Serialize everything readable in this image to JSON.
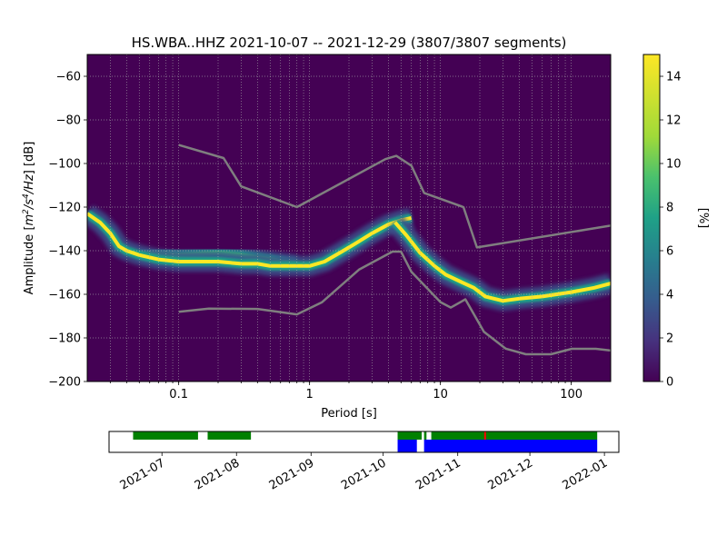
{
  "chart_data": {
    "type": "heatmap",
    "title": "HS.WBA..HHZ   2021-10-07 -- 2021-12-29  (3807/3807 segments)",
    "xlabel": "Period [s]",
    "ylabel_prefix": "Amplitude [",
    "ylabel_unit_main": "m",
    "ylabel_unit_sup1": "2",
    "ylabel_unit_mid": "/s",
    "ylabel_unit_sup2": "4",
    "ylabel_unit_end": "/Hz",
    "ylabel_suffix": "] [dB]",
    "x_scale": "log",
    "xlim": [
      0.02,
      200
    ],
    "ylim": [
      -200,
      -50
    ],
    "x_ticks": [
      {
        "v": 0.1,
        "label": "0.1"
      },
      {
        "v": 1,
        "label": "1"
      },
      {
        "v": 10,
        "label": "10"
      },
      {
        "v": 100,
        "label": "100"
      }
    ],
    "y_ticks": [
      {
        "v": -60,
        "label": "−60"
      },
      {
        "v": -80,
        "label": "−80"
      },
      {
        "v": -100,
        "label": "−100"
      },
      {
        "v": -120,
        "label": "−120"
      },
      {
        "v": -140,
        "label": "−140"
      },
      {
        "v": -160,
        "label": "−160"
      },
      {
        "v": -180,
        "label": "−180"
      },
      {
        "v": -200,
        "label": "−200"
      }
    ],
    "grid": true,
    "colormap": "viridis",
    "colorbar": {
      "label": "[%]",
      "range": [
        0,
        15
      ],
      "ticks": [
        {
          "v": 0,
          "label": "0"
        },
        {
          "v": 2,
          "label": "2"
        },
        {
          "v": 4,
          "label": "4"
        },
        {
          "v": 6,
          "label": "6"
        },
        {
          "v": 8,
          "label": "8"
        },
        {
          "v": 10,
          "label": "10"
        },
        {
          "v": 12,
          "label": "12"
        },
        {
          "v": 14,
          "label": "14"
        }
      ]
    },
    "density_ridge": {
      "period": [
        0.02,
        0.025,
        0.03,
        0.035,
        0.04,
        0.05,
        0.07,
        0.1,
        0.15,
        0.2,
        0.3,
        0.4,
        0.5,
        0.7,
        1.0,
        1.3,
        1.7,
        2.2,
        3.0,
        4.0,
        5.0,
        6.0
      ],
      "amplitude_db": [
        -123,
        -127,
        -132,
        -138,
        -140,
        -142,
        -144,
        -145,
        -145,
        -145,
        -146,
        -146,
        -147,
        -147,
        -147,
        -145,
        -141,
        -137,
        -132,
        -128,
        -126,
        -125
      ]
    },
    "density_ridge_2": {
      "period": [
        4.5,
        5.5,
        7,
        9,
        11,
        14,
        18,
        22,
        30,
        40,
        60,
        100,
        150,
        200
      ],
      "amplitude_db": [
        -127,
        -133,
        -141,
        -147,
        -151,
        -154,
        -157,
        -161,
        -163,
        -162,
        -161,
        -159,
        -157,
        -155
      ]
    },
    "secondary_ridge": {
      "period": [
        0.05,
        0.1,
        0.2,
        0.3,
        0.5,
        0.8
      ],
      "amplitude_db": [
        -141,
        -142,
        -141,
        -142,
        -144,
        -146
      ]
    },
    "series": [
      {
        "period": [
          0.1,
          0.22,
          0.3,
          0.8,
          3.8,
          4.6,
          6.0,
          7.5,
          15,
          19,
          200
        ],
        "amplitude_db": [
          -91.5,
          -97.5,
          -110.5,
          -120,
          -98,
          -96.5,
          -101,
          -113.5,
          -120,
          -138.5,
          -128.5
        ]
      },
      {
        "period": [
          0.1,
          0.17,
          0.4,
          0.8,
          1.24,
          2.4,
          4.3,
          5.0,
          6.0,
          10,
          12,
          15.5,
          21.5,
          31.5,
          45,
          70,
          101,
          154,
          200
        ],
        "amplitude_db": [
          -168,
          -166.6,
          -166.7,
          -169.2,
          -163.7,
          -148.6,
          -140.4,
          -140.4,
          -149.7,
          -163.6,
          -166.1,
          -162.3,
          -177.2,
          -184.9,
          -187.5,
          -187.5,
          -185,
          -185,
          -185.8
        ]
      }
    ],
    "availability": {
      "date_ticks": [
        {
          "date": "2021-07-01",
          "label": "2021-07"
        },
        {
          "date": "2021-08-01",
          "label": "2021-08"
        },
        {
          "date": "2021-09-01",
          "label": "2021-09"
        },
        {
          "date": "2021-10-01",
          "label": "2021-10"
        },
        {
          "date": "2021-11-01",
          "label": "2021-11"
        },
        {
          "date": "2021-12-01",
          "label": "2021-12"
        },
        {
          "date": "2022-01-01",
          "label": "2022-01"
        }
      ],
      "x_range": [
        "2021-06-09",
        "2022-01-07"
      ],
      "data_present": [
        [
          "2021-06-19",
          "2021-07-16"
        ],
        [
          "2021-07-20",
          "2021-08-07"
        ],
        [
          "2021-10-07",
          "2021-10-17"
        ],
        [
          "2021-10-18",
          "2021-10-19"
        ],
        [
          "2021-10-21",
          "2021-12-29"
        ]
      ],
      "used": [
        [
          "2021-10-07",
          "2021-10-15"
        ],
        [
          "2021-10-18",
          "2021-12-29"
        ]
      ],
      "gaps": [
        "2021-11-12"
      ],
      "colors": {
        "data": "#008000",
        "used": "#0000ff",
        "gap": "#ff0000"
      }
    }
  }
}
